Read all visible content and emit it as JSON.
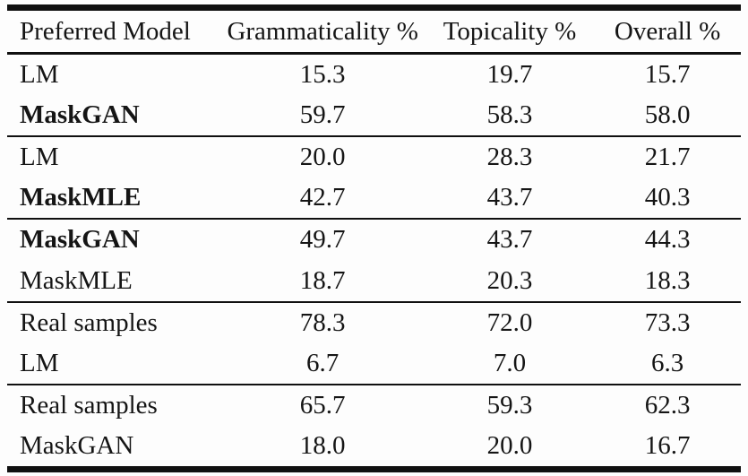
{
  "table": {
    "columns": {
      "model": "Preferred Model",
      "grammaticality": "Grammaticality %",
      "topicality": "Topicality %",
      "overall": "Overall %"
    },
    "groups": [
      {
        "rows": [
          {
            "model": "LM",
            "grammaticality": "15.3",
            "topicality": "19.7",
            "overall": "15.7",
            "bold": false
          },
          {
            "model": "MaskGAN",
            "grammaticality": "59.7",
            "topicality": "58.3",
            "overall": "58.0",
            "bold": true
          }
        ]
      },
      {
        "rows": [
          {
            "model": "LM",
            "grammaticality": "20.0",
            "topicality": "28.3",
            "overall": "21.7",
            "bold": false
          },
          {
            "model": "MaskMLE",
            "grammaticality": "42.7",
            "topicality": "43.7",
            "overall": "40.3",
            "bold": true
          }
        ]
      },
      {
        "rows": [
          {
            "model": "MaskGAN",
            "grammaticality": "49.7",
            "topicality": "43.7",
            "overall": "44.3",
            "bold": true
          },
          {
            "model": "MaskMLE",
            "grammaticality": "18.7",
            "topicality": "20.3",
            "overall": "18.3",
            "bold": false
          }
        ]
      },
      {
        "rows": [
          {
            "model": "Real samples",
            "grammaticality": "78.3",
            "topicality": "72.0",
            "overall": "73.3",
            "bold": false
          },
          {
            "model": "LM",
            "grammaticality": "6.7",
            "topicality": "7.0",
            "overall": "6.3",
            "bold": false
          }
        ]
      },
      {
        "rows": [
          {
            "model": "Real samples",
            "grammaticality": "65.7",
            "topicality": "59.3",
            "overall": "62.3",
            "bold": false
          },
          {
            "model": "MaskGAN",
            "grammaticality": "18.0",
            "topicality": "20.0",
            "overall": "16.7",
            "bold": false
          }
        ]
      }
    ]
  }
}
